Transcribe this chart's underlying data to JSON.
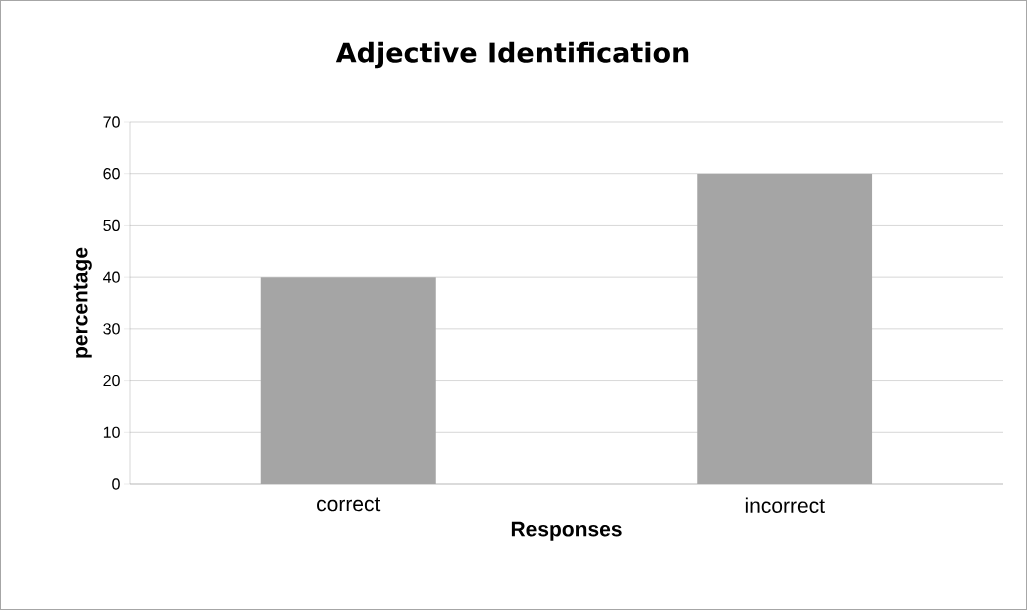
{
  "chart_data": {
    "type": "bar",
    "title": "Adjective Identification",
    "xlabel": "Responses",
    "ylabel": "percentage",
    "categories": [
      "correct",
      "incorrect"
    ],
    "values": [
      40,
      60
    ],
    "color": "#a5a5a5",
    "ylim": [
      0,
      70
    ],
    "yticks": [
      0,
      10,
      20,
      30,
      40,
      50,
      60,
      70
    ],
    "grid": "y"
  }
}
